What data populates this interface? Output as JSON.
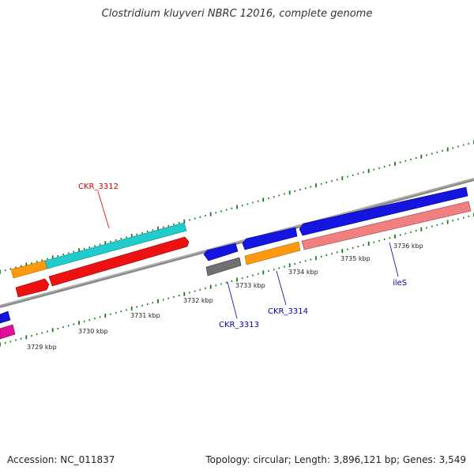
{
  "title": "Clostridium kluyveri NBRC 12016, complete genome",
  "accession": "Accession: NC_011837",
  "summary": "Topology: circular; Length: 3,896,121 bp; Genes: 3,549",
  "tick_labels": [
    "3729 kbp",
    "3730 kbp",
    "3731 kbp",
    "3732 kbp",
    "3733 kbp",
    "3734 kbp",
    "3735 kbp",
    "3736 kbp"
  ],
  "gene_labels": [
    {
      "name": "CKR_3312",
      "color": "#d40000"
    },
    {
      "name": "CKR_3313",
      "color": "#0000b0"
    },
    {
      "name": "CKR_3314",
      "color": "#0000b0"
    },
    {
      "name": "ileS",
      "color": "#0000b0"
    }
  ],
  "colors": {
    "backbone": "#888888",
    "tick": "#1a7a1a",
    "blue": "#1515e0",
    "orange": "#ff9a10",
    "cyan": "#22cccc",
    "red": "#ee1111",
    "gray": "#707070",
    "pink": "#f08080",
    "magenta": "#e0109a"
  }
}
